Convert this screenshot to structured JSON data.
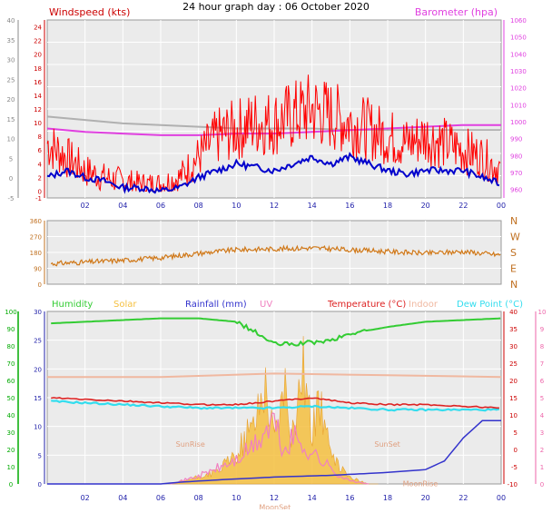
{
  "title": "24 hour graph day : 06 October 2020",
  "colors": {
    "plot_bg": "#ebebeb",
    "grid": "#ffffff",
    "wind_gust": "#ff0000",
    "wind_avg": "#0000cc",
    "barometer": "#e040e0",
    "barometer_alt": "#b0b0b0",
    "direction": "#d07818",
    "humidity": "#33cc33",
    "solar": "#f5c040",
    "rainfall": "#3333cc",
    "uv": "#f080c0",
    "temperature": "#dd2222",
    "indoor": "#f0b8a0",
    "dewpoint": "#33ddee",
    "axis_green": "#00aa00",
    "axis_red": "#cc0000",
    "axis_pink": "#ee66aa",
    "axis_brown": "#c07020",
    "axis_blue": "#2222aa",
    "axis_gray": "#888888"
  },
  "chart_data": [
    {
      "type": "line",
      "panel": "wind",
      "left_label": "Windspeed (kts)",
      "right_label": "Barometer (hpa)",
      "x_ticks": [
        "02",
        "04",
        "06",
        "08",
        "10",
        "12",
        "14",
        "16",
        "18",
        "20",
        "22",
        "00"
      ],
      "x_range_hours": [
        0,
        24
      ],
      "left_ticks": [
        "-1",
        "0",
        "2",
        "4",
        "6",
        "8",
        "10",
        "12",
        "14",
        "16",
        "18",
        "20",
        "22",
        "24"
      ],
      "left_ticks_far": [
        "-5",
        "0",
        "5",
        "10",
        "15",
        "20",
        "25",
        "30",
        "35",
        "40"
      ],
      "right_ticks": [
        "960",
        "970",
        "980",
        "990",
        "1000",
        "1010",
        "1020",
        "1030",
        "1040",
        "1050",
        "1060"
      ],
      "ylim_left": [
        -1,
        25
      ],
      "ylim_right": [
        955,
        1060
      ],
      "series": [
        {
          "role": "gust",
          "x": [
            0,
            1,
            2,
            3,
            4,
            5,
            6,
            7,
            8,
            9,
            10,
            11,
            12,
            13,
            14,
            15,
            16,
            17,
            18,
            19,
            20,
            21,
            22,
            23,
            24
          ],
          "values": [
            7,
            5,
            3,
            2,
            1.5,
            1,
            1,
            2,
            5,
            8,
            9,
            10,
            10,
            11,
            12,
            11,
            10,
            9,
            8,
            7,
            8,
            7,
            6,
            5,
            3
          ]
        },
        {
          "role": "average",
          "x": [
            0,
            1,
            2,
            3,
            4,
            5,
            6,
            7,
            8,
            9,
            10,
            11,
            12,
            13,
            14,
            15,
            16,
            17,
            18,
            19,
            20,
            21,
            22,
            23,
            24
          ],
          "values": [
            2,
            3,
            2,
            1.5,
            0.5,
            0.5,
            0,
            0.5,
            2,
            3,
            4,
            3.5,
            3,
            4,
            5,
            4,
            5,
            4,
            3,
            2.5,
            3,
            3,
            3,
            2,
            1
          ]
        },
        {
          "role": "barometer",
          "x": [
            0,
            2,
            4,
            6,
            8,
            10,
            12,
            14,
            16,
            18,
            20,
            22,
            24
          ],
          "values": [
            996,
            994,
            993,
            992,
            992,
            993,
            993,
            994,
            995,
            996,
            997,
            998,
            998
          ]
        },
        {
          "role": "barometer_alt",
          "x": [
            0,
            2,
            4,
            6,
            8,
            10,
            12,
            14,
            16,
            18,
            20,
            22,
            24
          ],
          "values": [
            1003,
            1001,
            999,
            998,
            997,
            996,
            996,
            996,
            995,
            995,
            995,
            995,
            995
          ]
        }
      ]
    },
    {
      "type": "line",
      "panel": "direction",
      "x_ticks": [
        "02",
        "04",
        "06",
        "08",
        "10",
        "12",
        "14",
        "16",
        "18",
        "20",
        "22",
        "00"
      ],
      "left_ticks": [
        "0",
        "90",
        "180",
        "270",
        "360"
      ],
      "right_ticks": [
        "N",
        "E",
        "S",
        "W",
        "N"
      ],
      "ylim": [
        0,
        360
      ],
      "series": [
        {
          "role": "direction",
          "x": [
            0,
            2,
            4,
            6,
            8,
            10,
            12,
            14,
            16,
            18,
            20,
            22,
            24
          ],
          "values": [
            115,
            125,
            135,
            150,
            175,
            195,
            200,
            205,
            195,
            185,
            175,
            185,
            165
          ]
        }
      ]
    },
    {
      "type": "area",
      "panel": "temperature",
      "legend": [
        "Humidity",
        "Solar",
        "Rainfall (mm)",
        "UV",
        "Temperature (°C)",
        "Indoor",
        "Dew Point (°C)"
      ],
      "x_ticks": [
        "02",
        "04",
        "06",
        "08",
        "10",
        "12",
        "14",
        "16",
        "18",
        "20",
        "22",
        "00"
      ],
      "inner_left_ticks": [
        "0",
        "5",
        "10",
        "15",
        "20",
        "25",
        "30"
      ],
      "outer_left_ticks": [
        "0",
        "10",
        "20",
        "30",
        "40",
        "50",
        "60",
        "70",
        "80",
        "90",
        "100"
      ],
      "right_ticks": [
        "-10",
        "-5",
        "0",
        "5",
        "10",
        "15",
        "20",
        "25",
        "30",
        "35",
        "40"
      ],
      "right_far_ticks": [
        "0",
        "1",
        "2",
        "3",
        "4",
        "5",
        "6",
        "7",
        "8",
        "9",
        "10"
      ],
      "annotations": [
        "SunRise",
        "SunSet",
        "MoonSet",
        "MoonRise"
      ],
      "series": [
        {
          "role": "humidity",
          "x": [
            0,
            2,
            4,
            6,
            8,
            10,
            11,
            12,
            13,
            14,
            15,
            16,
            18,
            20,
            22,
            24
          ],
          "values": [
            93,
            94,
            95,
            96,
            96,
            94,
            88,
            81,
            81,
            82,
            83,
            87,
            91,
            94,
            95,
            96
          ]
        },
        {
          "role": "indoor",
          "x": [
            0,
            6,
            12,
            18,
            24
          ],
          "values": [
            21,
            21,
            22,
            21.5,
            21
          ]
        },
        {
          "role": "temperature",
          "x": [
            0,
            2,
            4,
            6,
            8,
            10,
            12,
            14,
            16,
            18,
            20,
            22,
            24
          ],
          "values": [
            15,
            14.5,
            14,
            13.5,
            13,
            13,
            14,
            15,
            13.5,
            13,
            13,
            12.5,
            12
          ]
        },
        {
          "role": "dewpoint",
          "x": [
            0,
            2,
            4,
            6,
            8,
            10,
            12,
            14,
            16,
            18,
            20,
            22,
            24
          ],
          "values": [
            14,
            13.5,
            13,
            12.5,
            12,
            12,
            12,
            12.5,
            12,
            11.5,
            11.5,
            11.5,
            11.5
          ]
        },
        {
          "role": "rainfall",
          "x": [
            0,
            6,
            7,
            9,
            12,
            15,
            18,
            20,
            21,
            22,
            23,
            24
          ],
          "values": [
            0,
            0,
            0.3,
            0.7,
            1.2,
            1.5,
            2.0,
            2.5,
            4.0,
            8.0,
            11.0,
            11.0
          ]
        },
        {
          "role": "solar",
          "x": [
            0,
            6.5,
            7.5,
            9,
            10,
            11,
            11.5,
            12,
            12.5,
            13,
            13.5,
            14,
            14.5,
            15,
            15.5,
            16,
            17,
            18,
            24
          ],
          "values": [
            0,
            0,
            20,
            60,
            140,
            300,
            500,
            220,
            450,
            220,
            600,
            250,
            400,
            120,
            80,
            30,
            0,
            0,
            0
          ]
        },
        {
          "role": "uv",
          "x": [
            0,
            6.5,
            8,
            9,
            10,
            11,
            12,
            12.5,
            13,
            14,
            15,
            15.5,
            16,
            17,
            24
          ],
          "values": [
            0,
            0,
            0.5,
            1,
            1.5,
            2.5,
            4,
            2,
            3,
            2,
            1,
            0.5,
            0.2,
            0,
            0
          ]
        }
      ]
    }
  ]
}
